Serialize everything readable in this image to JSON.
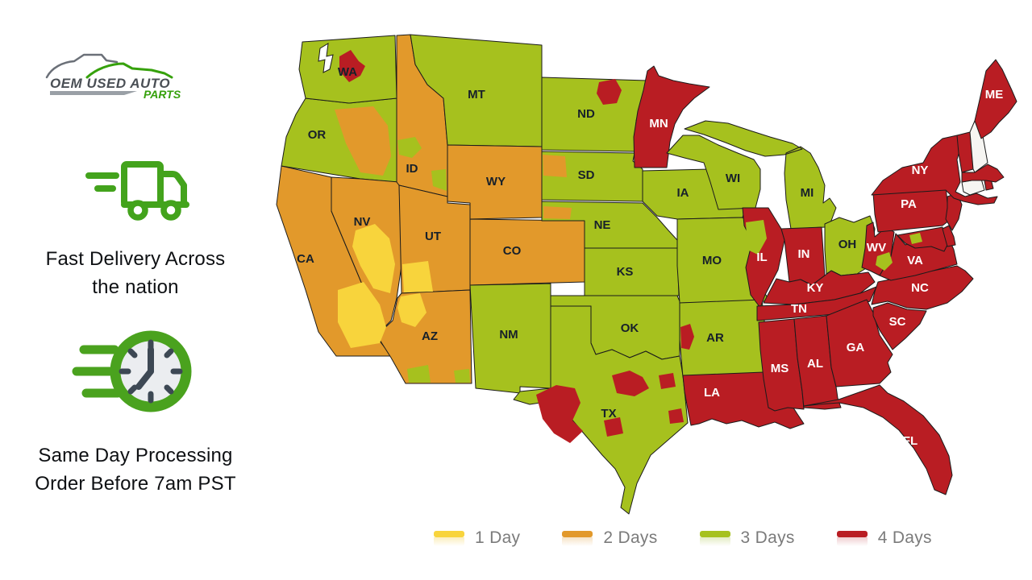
{
  "branding": {
    "logo_line1": "OEM USED AUTO",
    "logo_line2": "PARTS",
    "logo_text_color": "#4a4f55",
    "logo_accent_color": "#36a10c"
  },
  "features": [
    {
      "icon": "truck-icon",
      "lines": [
        "Fast Delivery Across",
        "the nation"
      ]
    },
    {
      "icon": "clock-icon",
      "lines": [
        "Same Day Processing",
        "Order Before 7am PST"
      ]
    }
  ],
  "accent_green": "#43a31c",
  "map": {
    "name": "US delivery time by state",
    "day_colors": {
      "0": "#f6f5f2",
      "1": "#f8d43c",
      "2": "#e2992b",
      "3": "#a6c11e",
      "4": "#b91d23"
    },
    "label_dark": "#17202a",
    "label_light": "#ffffff",
    "states": [
      {
        "abbr": "CA",
        "days": 2,
        "show_label": true
      },
      {
        "abbr": "OR",
        "days": 3,
        "show_label": true
      },
      {
        "abbr": "WA",
        "days": 3,
        "show_label": true
      },
      {
        "abbr": "NV",
        "days": 2,
        "show_label": true
      },
      {
        "abbr": "ID",
        "days": 2,
        "show_label": true
      },
      {
        "abbr": "MT",
        "days": 3,
        "show_label": true
      },
      {
        "abbr": "WY",
        "days": 2,
        "show_label": true
      },
      {
        "abbr": "UT",
        "days": 2,
        "show_label": true
      },
      {
        "abbr": "CO",
        "days": 2,
        "show_label": true
      },
      {
        "abbr": "AZ",
        "days": 2,
        "show_label": true
      },
      {
        "abbr": "NM",
        "days": 3,
        "show_label": true
      },
      {
        "abbr": "ND",
        "days": 3,
        "show_label": true
      },
      {
        "abbr": "SD",
        "days": 3,
        "show_label": true
      },
      {
        "abbr": "NE",
        "days": 3,
        "show_label": true
      },
      {
        "abbr": "KS",
        "days": 3,
        "show_label": true
      },
      {
        "abbr": "OK",
        "days": 3,
        "show_label": true
      },
      {
        "abbr": "TX",
        "days": 3,
        "show_label": true
      },
      {
        "abbr": "MN",
        "days": 4,
        "show_label": true
      },
      {
        "abbr": "IA",
        "days": 3,
        "show_label": true
      },
      {
        "abbr": "MO",
        "days": 3,
        "show_label": true
      },
      {
        "abbr": "AR",
        "days": 3,
        "show_label": true
      },
      {
        "abbr": "LA",
        "days": 4,
        "show_label": true
      },
      {
        "abbr": "WI",
        "days": 3,
        "show_label": true
      },
      {
        "abbr": "IL",
        "days": 4,
        "show_label": true
      },
      {
        "abbr": "MI",
        "days": 3,
        "show_label": true
      },
      {
        "abbr": "IN",
        "days": 4,
        "show_label": true
      },
      {
        "abbr": "OH",
        "days": 3,
        "show_label": true
      },
      {
        "abbr": "KY",
        "days": 4,
        "show_label": true
      },
      {
        "abbr": "TN",
        "days": 4,
        "show_label": true
      },
      {
        "abbr": "MS",
        "days": 4,
        "show_label": true
      },
      {
        "abbr": "AL",
        "days": 4,
        "show_label": true
      },
      {
        "abbr": "GA",
        "days": 4,
        "show_label": true
      },
      {
        "abbr": "FL",
        "days": 4,
        "show_label": true
      },
      {
        "abbr": "SC",
        "days": 4,
        "show_label": true
      },
      {
        "abbr": "NC",
        "days": 4,
        "show_label": true
      },
      {
        "abbr": "VA",
        "days": 4,
        "show_label": true
      },
      {
        "abbr": "WV",
        "days": 4,
        "show_label": true
      },
      {
        "abbr": "MD",
        "days": 4,
        "show_label": false
      },
      {
        "abbr": "DE",
        "days": 4,
        "show_label": false
      },
      {
        "abbr": "PA",
        "days": 4,
        "show_label": true
      },
      {
        "abbr": "NJ",
        "days": 4,
        "show_label": false
      },
      {
        "abbr": "NY",
        "days": 4,
        "show_label": true
      },
      {
        "abbr": "CT",
        "days": 0,
        "show_label": false
      },
      {
        "abbr": "RI",
        "days": 4,
        "show_label": false
      },
      {
        "abbr": "MA",
        "days": 4,
        "show_label": false
      },
      {
        "abbr": "VT",
        "days": 4,
        "show_label": false
      },
      {
        "abbr": "NH",
        "days": 0,
        "show_label": false
      },
      {
        "abbr": "ME",
        "days": 4,
        "show_label": true
      }
    ],
    "regional_patches": [
      {
        "id": "wa-seattle",
        "state": "WA",
        "days": 4
      },
      {
        "id": "or-east",
        "state": "OR",
        "days": 2
      },
      {
        "id": "id-north",
        "state": "ID",
        "days": 3
      },
      {
        "id": "id-southeast",
        "state": "ID",
        "days": 3
      },
      {
        "id": "nv-south",
        "state": "NV",
        "days": 1
      },
      {
        "id": "ca-southeast",
        "state": "CA",
        "days": 1
      },
      {
        "id": "ut-southwest",
        "state": "UT",
        "days": 1
      },
      {
        "id": "az-northwest",
        "state": "AZ",
        "days": 1
      },
      {
        "id": "az-south-west",
        "state": "AZ",
        "days": 3
      },
      {
        "id": "az-south-east",
        "state": "AZ",
        "days": 3
      },
      {
        "id": "nd-northwest",
        "state": "ND",
        "days": 4
      },
      {
        "id": "sd-west",
        "state": "SD",
        "days": 2
      },
      {
        "id": "ne-west",
        "state": "NE",
        "days": 2
      },
      {
        "id": "il-west",
        "state": "IL",
        "days": 3
      },
      {
        "id": "ar-west",
        "state": "AR",
        "days": 4
      },
      {
        "id": "tx-west",
        "state": "TX",
        "days": 4
      },
      {
        "id": "tx-central-north",
        "state": "TX",
        "days": 4
      },
      {
        "id": "tx-east",
        "state": "TX",
        "days": 4
      },
      {
        "id": "tx-houston",
        "state": "TX",
        "days": 4
      },
      {
        "id": "tx-south-central",
        "state": "TX",
        "days": 4
      },
      {
        "id": "va-north-dc",
        "state": "VA",
        "days": 3
      },
      {
        "id": "va-west",
        "state": "VA",
        "days": 3
      }
    ]
  },
  "legend": {
    "items": [
      {
        "label": "1 Day",
        "days": 1,
        "tint": "#fbeebe"
      },
      {
        "label": "2 Days",
        "days": 2,
        "tint": "#f6e3c5"
      },
      {
        "label": "3 Days",
        "days": 3,
        "tint": "#e4ecc3"
      },
      {
        "label": "4 Days",
        "days": 4,
        "tint": "#f0ced0"
      }
    ]
  }
}
